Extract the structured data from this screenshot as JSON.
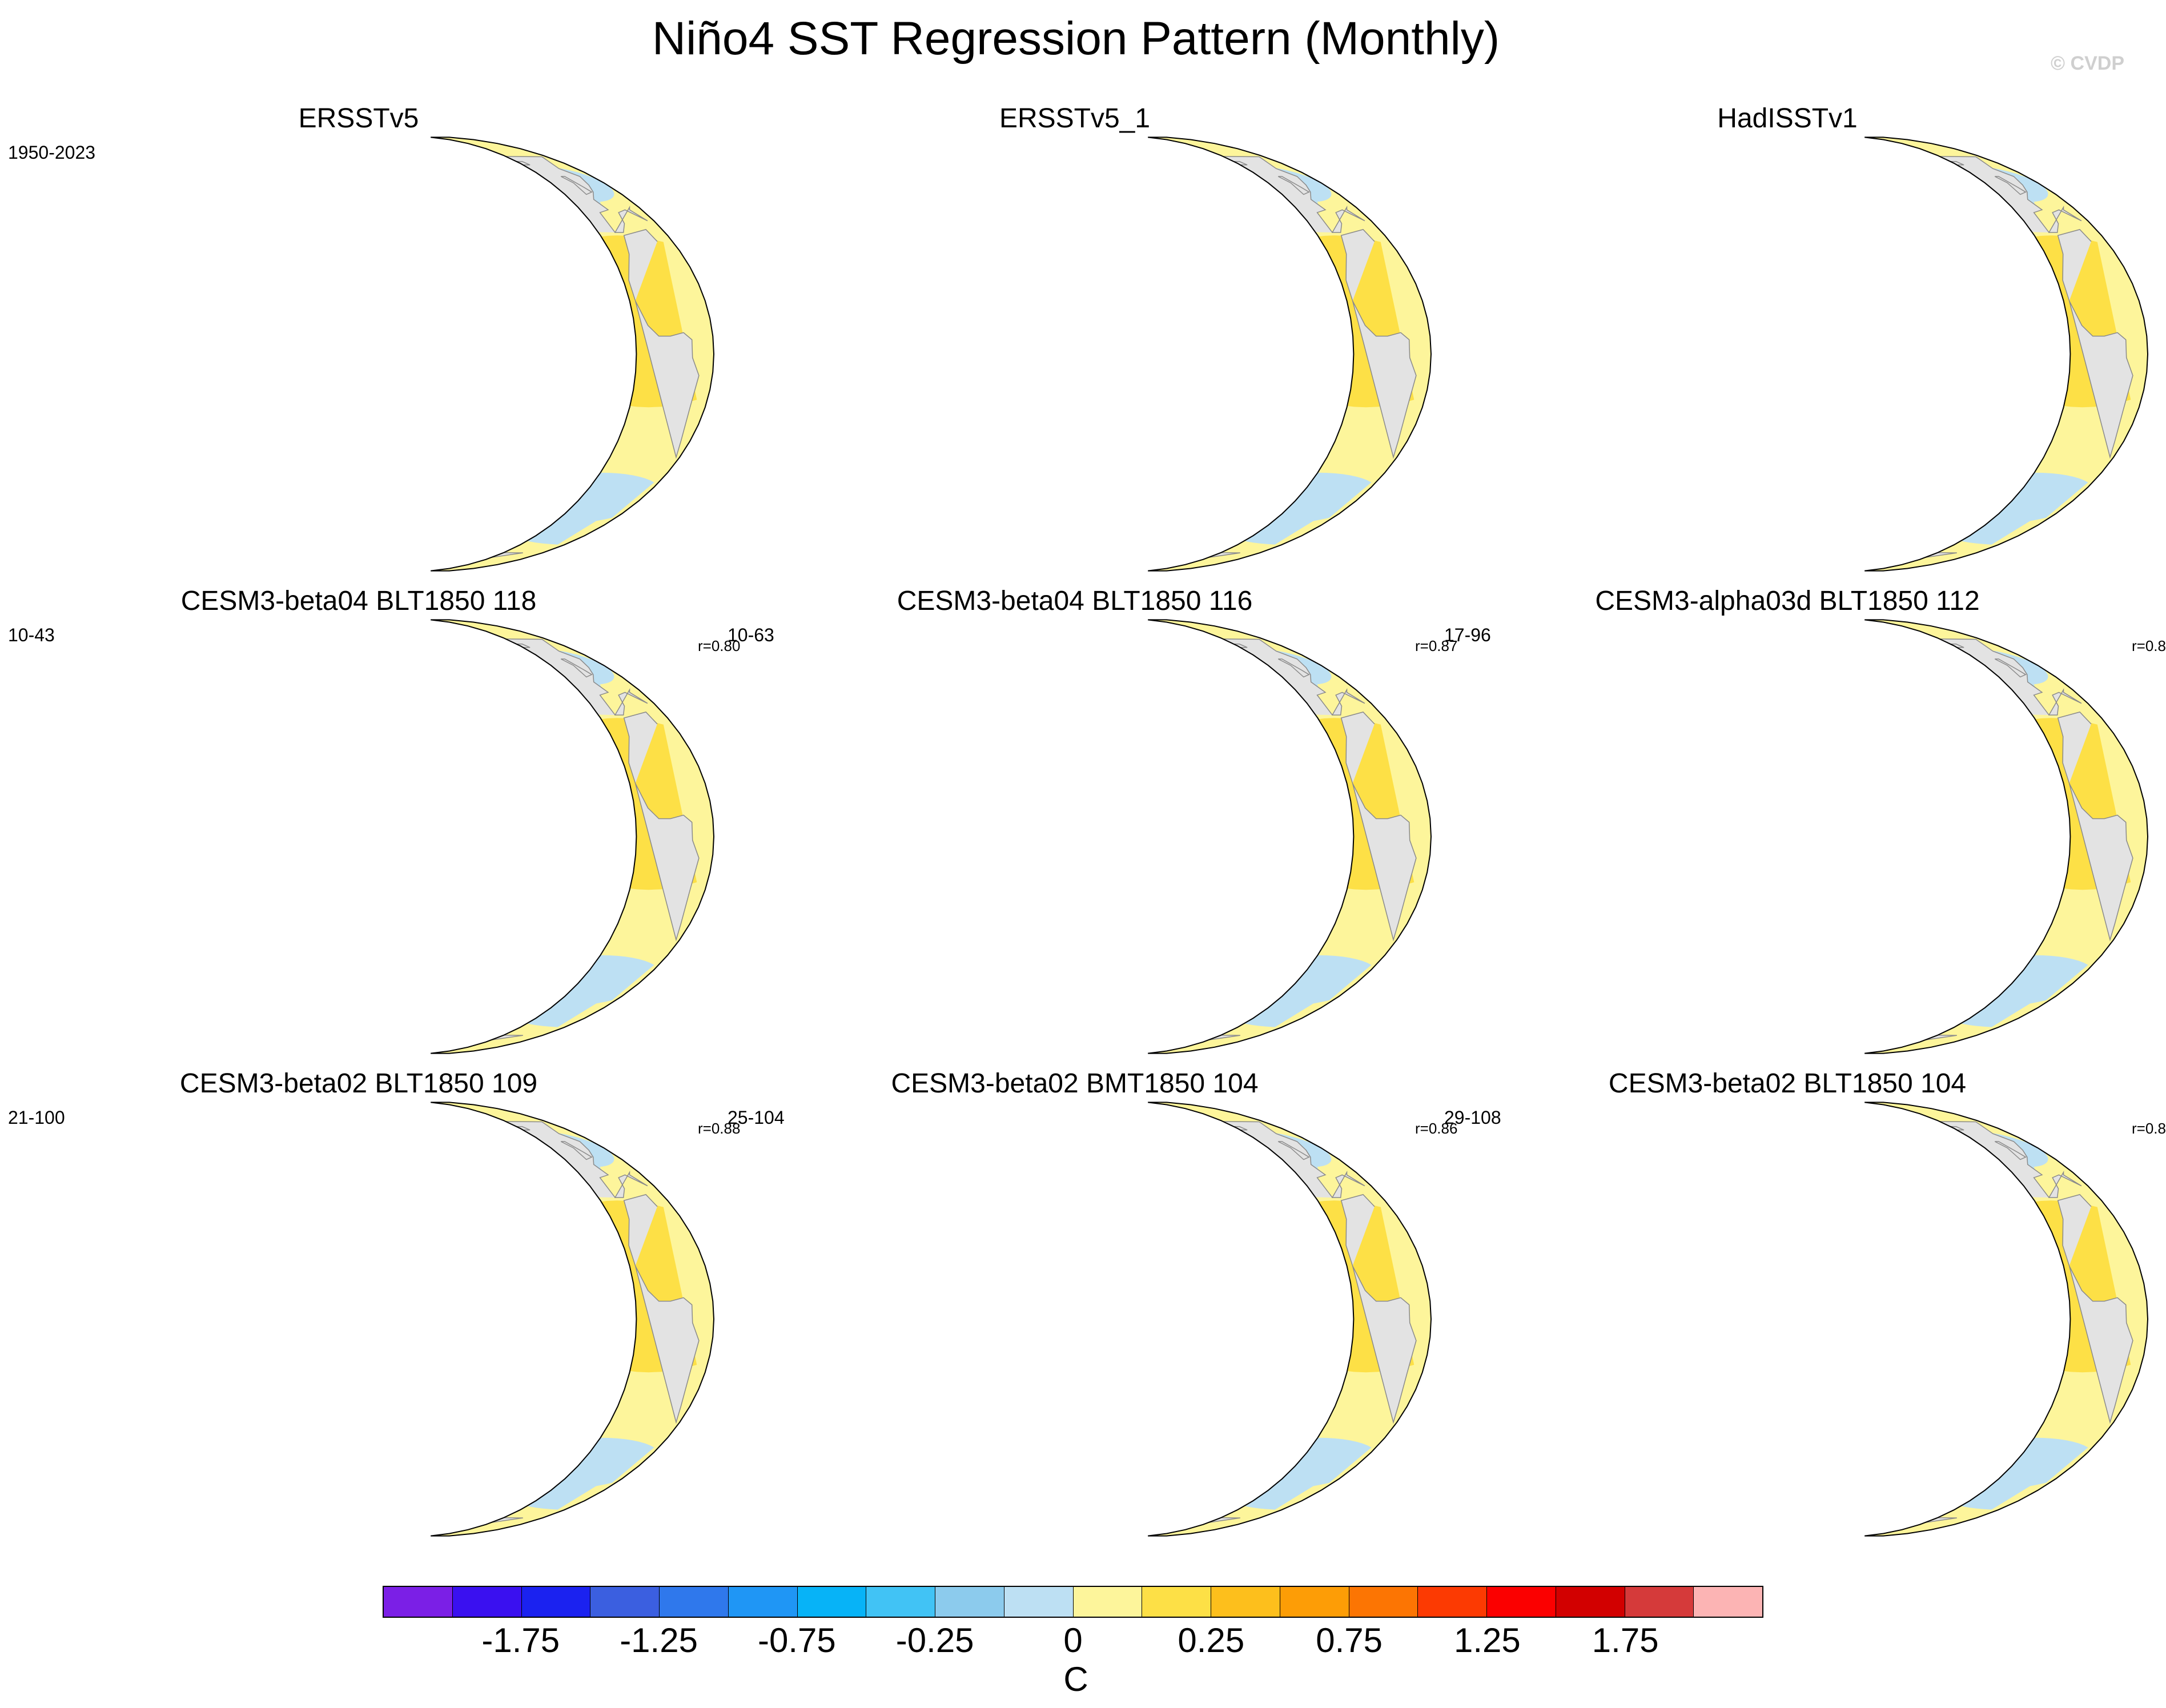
{
  "title": "Niño4 SST Regression Pattern (Monthly)",
  "copyright": "© CVDP",
  "panels": [
    {
      "title": "ERSSTv5",
      "years": "1950-2023",
      "corr": ""
    },
    {
      "title": "ERSSTv5_1",
      "years": "",
      "corr": ""
    },
    {
      "title": "HadISSTv1",
      "years": "",
      "corr": ""
    },
    {
      "title": "CESM3-beta04 BLT1850 118",
      "years": "10-43",
      "corr": "r=0.80"
    },
    {
      "title": "CESM3-beta04 BLT1850 116",
      "years": "10-63",
      "corr": "r=0.87"
    },
    {
      "title": "CESM3-alpha03d BLT1850 112",
      "years": "17-96",
      "corr": "r=0.8"
    },
    {
      "title": "CESM3-beta02 BLT1850 109",
      "years": "21-100",
      "corr": "r=0.88"
    },
    {
      "title": "CESM3-beta02 BMT1850 104",
      "years": "25-104",
      "corr": "r=0.86"
    },
    {
      "title": "CESM3-beta02 BLT1850 104",
      "years": "29-108",
      "corr": "r=0.8"
    }
  ],
  "colorbar": {
    "colors": [
      "#7b1fe6",
      "#3a10f0",
      "#1b22f0",
      "#3b5fe0",
      "#2f78ec",
      "#1f96f5",
      "#07b3f7",
      "#41c3f5",
      "#8ccbed",
      "#bde0f3",
      "#fdf59b",
      "#fde046",
      "#fdbf1c",
      "#fd9d06",
      "#fc7503",
      "#fc3a02",
      "#fb0000",
      "#d20000",
      "#d53a3a",
      "#fcb4b4"
    ],
    "tick_labels": [
      "-1.75",
      "-1.25",
      "-0.75",
      "-0.25",
      "0",
      "0.25",
      "0.75",
      "1.25",
      "1.75"
    ],
    "units": "C"
  },
  "map_colors": {
    "land": "#e3e3e3",
    "coast": "#8a8a8a",
    "ocean_neutral": "#fdf59b"
  }
}
